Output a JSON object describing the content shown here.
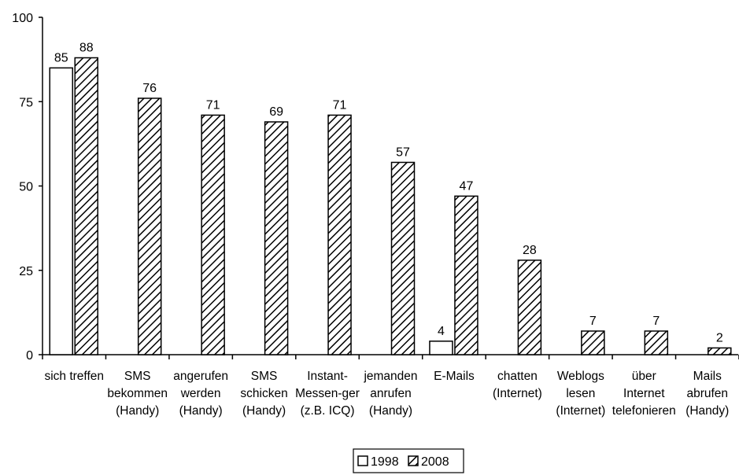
{
  "chart_data": {
    "type": "bar",
    "categories": [
      [
        "sich treffen"
      ],
      [
        "SMS",
        "bekommen",
        "(Handy)"
      ],
      [
        "angerufen",
        "werden",
        "(Handy)"
      ],
      [
        "SMS",
        "schicken",
        "(Handy)"
      ],
      [
        "Instant-",
        "Messen-ger",
        "(z.B. ICQ)"
      ],
      [
        "jemanden",
        "anrufen",
        "(Handy)"
      ],
      [
        "E-Mails"
      ],
      [
        "chatten",
        "(Internet)"
      ],
      [
        "Weblogs",
        "lesen",
        "(Internet)"
      ],
      [
        "über",
        "Internet",
        "telefonieren"
      ],
      [
        "Mails",
        "abrufen",
        "(Handy)"
      ]
    ],
    "series": [
      {
        "name": "1998",
        "pattern": "solid-white",
        "values": [
          85,
          null,
          null,
          null,
          null,
          null,
          4,
          null,
          null,
          null,
          null
        ]
      },
      {
        "name": "2008",
        "pattern": "diagonal-hatch",
        "values": [
          88,
          76,
          71,
          69,
          71,
          57,
          47,
          28,
          7,
          7,
          2
        ]
      }
    ],
    "ylim": [
      0,
      100
    ],
    "yticks": [
      0,
      25,
      50,
      75,
      100
    ],
    "grid": false,
    "legend_position": "bottom-center",
    "colors": {
      "line": "#000000",
      "fill_1998": "#ffffff",
      "hatch_2008": "#000000"
    }
  }
}
